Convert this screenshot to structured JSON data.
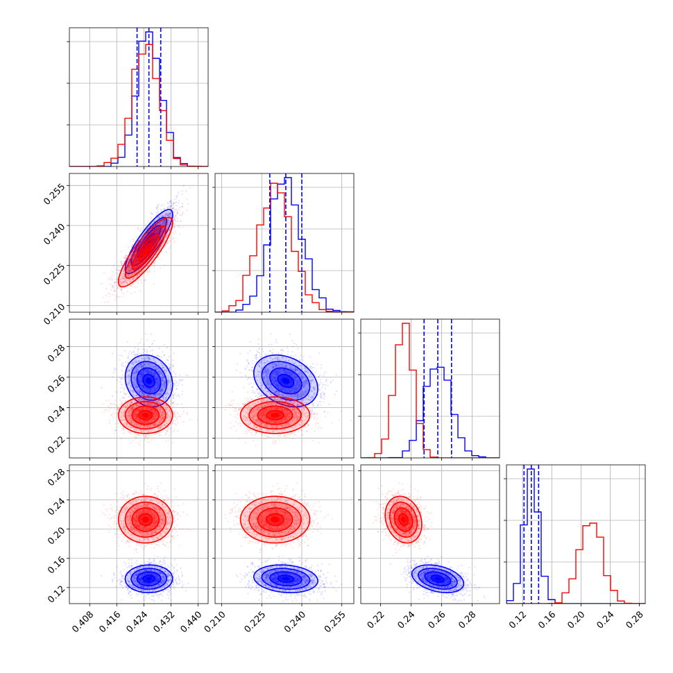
{
  "chart_data": {
    "type": "corner",
    "parameters": [
      {
        "range": [
          0.402,
          0.443
        ],
        "ticks": [
          "0.408",
          "0.416",
          "0.424",
          "0.432",
          "0.440"
        ],
        "tick_values": [
          0.408,
          0.416,
          0.424,
          0.432,
          0.44
        ]
      },
      {
        "range": [
          0.2075,
          0.2595
        ],
        "ticks": [
          "0.210",
          "0.225",
          "0.240",
          "0.255"
        ],
        "tick_values": [
          0.21,
          0.225,
          0.24,
          0.255
        ]
      },
      {
        "range": [
          0.207,
          0.298
        ],
        "ticks": [
          "0.22",
          "0.24",
          "0.26",
          "0.28"
        ],
        "tick_values": [
          0.22,
          0.24,
          0.26,
          0.28
        ]
      },
      {
        "range": [
          0.098,
          0.288
        ],
        "ticks": [
          "0.12",
          "0.16",
          "0.20",
          "0.24",
          "0.28"
        ],
        "tick_values": [
          0.12,
          0.16,
          0.2,
          0.24,
          0.28
        ]
      }
    ],
    "series": [
      {
        "color": "#0000ff",
        "mean": [
          0.4255,
          0.234,
          0.2575,
          0.132
        ],
        "std": [
          0.0035,
          0.006,
          0.0085,
          0.0095
        ],
        "corr": [
          [
            1.0,
            0.85,
            -0.15,
            0.02
          ],
          [
            0.85,
            1.0,
            -0.3,
            -0.15
          ],
          [
            -0.15,
            -0.3,
            1.0,
            -0.35
          ],
          [
            0.02,
            -0.15,
            -0.35,
            1.0
          ]
        ]
      },
      {
        "color": "#ff0000",
        "mean": [
          0.4245,
          0.23,
          0.235,
          0.213
        ],
        "std": [
          0.004,
          0.0065,
          0.006,
          0.016
        ],
        "corr": [
          [
            1.0,
            0.85,
            0.0,
            0.0
          ],
          [
            0.85,
            1.0,
            0.0,
            0.0
          ],
          [
            0.0,
            0.0,
            1.0,
            -0.2
          ],
          [
            0.0,
            0.0,
            -0.2,
            1.0
          ]
        ]
      }
    ],
    "quantile_lines": {
      "color": "#0000ff",
      "values": [
        [
          0.422,
          0.4255,
          0.429
        ],
        [
          0.228,
          0.234,
          0.24
        ],
        [
          0.2485,
          0.2575,
          0.2665
        ],
        [
          0.122,
          0.132,
          0.142
        ]
      ]
    },
    "histogram_bins": 20,
    "contour_levels": [
      0.5,
      1.0,
      1.5,
      2.0
    ],
    "grid": true,
    "legend": "none"
  }
}
